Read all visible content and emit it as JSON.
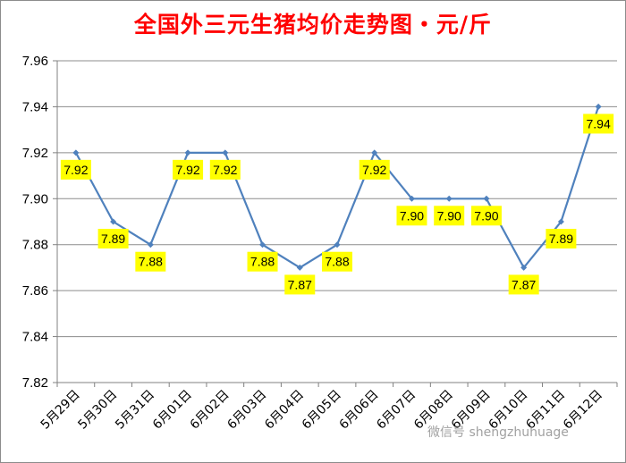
{
  "chart_data": {
    "type": "line",
    "title": "全国外三元生猪均价走势图・元/斤",
    "categories": [
      "5月29日",
      "5月30日",
      "5月31日",
      "6月01日",
      "6月02日",
      "6月03日",
      "6月04日",
      "6月05日",
      "6月06日",
      "6月07日",
      "6月08日",
      "6月09日",
      "6月10日",
      "6月11日",
      "6月12日"
    ],
    "values": [
      7.92,
      7.89,
      7.88,
      7.92,
      7.92,
      7.88,
      7.87,
      7.88,
      7.92,
      7.9,
      7.9,
      7.9,
      7.87,
      7.89,
      7.94
    ],
    "data_labels": [
      "7.92",
      "7.89",
      "7.88",
      "7.92",
      "7.92",
      "7.88",
      "7.87",
      "7.88",
      "7.92",
      "7.90",
      "7.90",
      "7.90",
      "7.87",
      "7.89",
      "7.94"
    ],
    "ylim": [
      7.82,
      7.96
    ],
    "yticks": [
      "7.96",
      "7.94",
      "7.92",
      "7.90",
      "7.88",
      "7.86",
      "7.84",
      "7.82"
    ],
    "grid": true,
    "line_color": "#4f81bd",
    "label_bg": "#ffff00"
  },
  "watermark": "微信号 shengzhuhuage"
}
